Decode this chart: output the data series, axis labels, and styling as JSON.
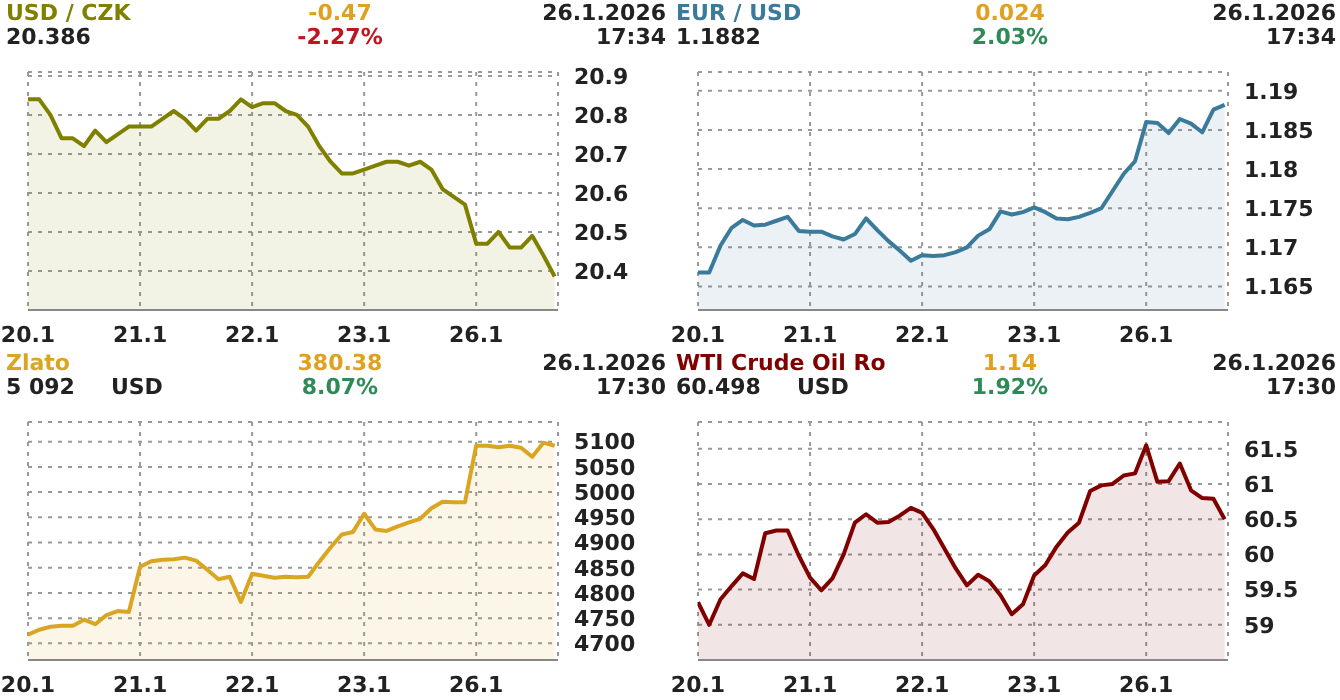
{
  "chart_data": [
    {
      "type": "area",
      "title": "USD / CZK",
      "annotations": [
        "20.386",
        "-0.47",
        "-2.27%",
        "26.1.2026",
        "17:34"
      ],
      "grid": true,
      "categories": [
        "20.1",
        null,
        null,
        null,
        null,
        null,
        null,
        null,
        null,
        null,
        "21.1",
        null,
        null,
        null,
        null,
        null,
        null,
        null,
        null,
        null,
        "22.1",
        null,
        null,
        null,
        null,
        null,
        null,
        null,
        null,
        null,
        "23.1",
        null,
        null,
        null,
        null,
        null,
        null,
        null,
        null,
        null,
        "26.1",
        null,
        null,
        null,
        null,
        null,
        null,
        null
      ],
      "ylim": [
        20.3,
        20.91
      ],
      "yticks": [
        20.4,
        20.5,
        20.6,
        20.7,
        20.8,
        20.9
      ],
      "series": [
        {
          "color": "#808000",
          "values": [
            20.84,
            20.84,
            20.8,
            20.74,
            20.74,
            20.72,
            20.76,
            20.73,
            20.75,
            20.77,
            20.77,
            20.77,
            20.79,
            20.81,
            20.79,
            20.76,
            20.79,
            20.79,
            20.81,
            20.84,
            20.82,
            20.83,
            20.83,
            20.81,
            20.8,
            20.77,
            20.72,
            20.68,
            20.65,
            20.65,
            20.66,
            20.67,
            20.68,
            20.68,
            20.67,
            20.68,
            20.66,
            20.61,
            20.59,
            20.57,
            20.47,
            20.47,
            20.5,
            20.46,
            20.46,
            20.49,
            20.44,
            20.386
          ]
        }
      ]
    },
    {
      "type": "area",
      "title": "EUR / USD",
      "annotations": [
        "1.1882",
        "0.024",
        "2.03%",
        "26.1.2026",
        "17:34"
      ],
      "grid": true,
      "categories": [
        "20.1",
        null,
        null,
        null,
        null,
        null,
        null,
        null,
        null,
        null,
        "21.1",
        null,
        null,
        null,
        null,
        null,
        null,
        null,
        null,
        null,
        "22.1",
        null,
        null,
        null,
        null,
        null,
        null,
        null,
        null,
        null,
        "23.1",
        null,
        null,
        null,
        null,
        null,
        null,
        null,
        null,
        null,
        "26.1",
        null,
        null,
        null,
        null,
        null,
        null,
        null
      ],
      "ylim": [
        1.162,
        1.1924
      ],
      "yticks": [
        1.165,
        1.17,
        1.175,
        1.18,
        1.185,
        1.19
      ],
      "series": [
        {
          "color": "#3a7a9a",
          "values": [
            1.1668,
            1.1668,
            1.1702,
            1.1725,
            1.1735,
            1.1728,
            1.1729,
            1.1734,
            1.1739,
            1.1721,
            1.172,
            1.172,
            1.1714,
            1.171,
            1.1717,
            1.1737,
            1.1722,
            1.1708,
            1.1696,
            1.1683,
            1.169,
            1.1689,
            1.169,
            1.1694,
            1.17,
            1.1715,
            1.1723,
            1.1746,
            1.1742,
            1.1745,
            1.1751,
            1.1745,
            1.1737,
            1.1736,
            1.1739,
            1.1744,
            1.175,
            1.1772,
            1.1794,
            1.181,
            1.186,
            1.1859,
            1.1846,
            1.1864,
            1.1858,
            1.1847,
            1.1876,
            1.1882
          ]
        }
      ]
    },
    {
      "type": "area",
      "title": "Zlato",
      "annotations": [
        "5 092",
        "USD",
        "380.38",
        "8.07%",
        "26.1.2026",
        "17:30"
      ],
      "grid": true,
      "categories": [
        "20.1",
        null,
        null,
        null,
        null,
        null,
        null,
        null,
        null,
        null,
        "21.1",
        null,
        null,
        null,
        null,
        null,
        null,
        null,
        null,
        null,
        "22.1",
        null,
        null,
        null,
        null,
        null,
        null,
        null,
        null,
        null,
        "23.1",
        null,
        null,
        null,
        null,
        null,
        null,
        null,
        null,
        null,
        "26.1",
        null,
        null,
        null,
        null,
        null,
        null,
        null
      ],
      "ylim": [
        4667,
        5139
      ],
      "yticks": [
        4700,
        4750,
        4800,
        4850,
        4900,
        4950,
        5000,
        5050,
        5100
      ],
      "series": [
        {
          "color": "#daa520",
          "values": [
            4717,
            4727,
            4733,
            4735,
            4735,
            4747,
            4738,
            4756,
            4764,
            4762,
            4852,
            4863,
            4866,
            4867,
            4870,
            4864,
            4846,
            4827,
            4832,
            4782,
            4838,
            4834,
            4830,
            4832,
            4831,
            4832,
            4862,
            4890,
            4916,
            4921,
            4957,
            4926,
            4923,
            4932,
            4940,
            4947,
            4968,
            4981,
            4980,
            4980,
            5092,
            5092,
            5089,
            5092,
            5088,
            5070,
            5098,
            5092
          ]
        }
      ]
    },
    {
      "type": "area",
      "title": "WTI Crude Oil Ro",
      "annotations": [
        "60.498",
        "USD",
        "1.14",
        "1.92%",
        "26.1.2026",
        "17:30"
      ],
      "grid": true,
      "categories": [
        "20.1",
        null,
        null,
        null,
        null,
        null,
        null,
        null,
        null,
        null,
        "21.1",
        null,
        null,
        null,
        null,
        null,
        null,
        null,
        null,
        null,
        "22.1",
        null,
        null,
        null,
        null,
        null,
        null,
        null,
        null,
        null,
        "23.1",
        null,
        null,
        null,
        null,
        null,
        null,
        null,
        null,
        null,
        "26.1",
        null,
        null,
        null,
        null,
        null,
        null,
        null
      ],
      "ylim": [
        58.5,
        61.88
      ],
      "yticks": [
        59,
        59.5,
        60,
        60.5,
        61,
        61.5
      ],
      "series": [
        {
          "color": "#800000",
          "values": [
            59.32,
            59.0,
            59.36,
            59.55,
            59.73,
            59.65,
            60.3,
            60.34,
            60.34,
            59.98,
            59.67,
            59.49,
            59.66,
            60.0,
            60.45,
            60.57,
            60.45,
            60.46,
            60.55,
            60.66,
            60.59,
            60.36,
            60.08,
            59.8,
            59.56,
            59.71,
            59.62,
            59.42,
            59.15,
            59.29,
            59.7,
            59.85,
            60.11,
            60.31,
            60.45,
            60.9,
            60.98,
            61.0,
            61.12,
            61.15,
            61.55,
            61.03,
            61.04,
            61.29,
            60.91,
            60.8,
            60.79,
            60.5
          ]
        }
      ]
    }
  ]
}
